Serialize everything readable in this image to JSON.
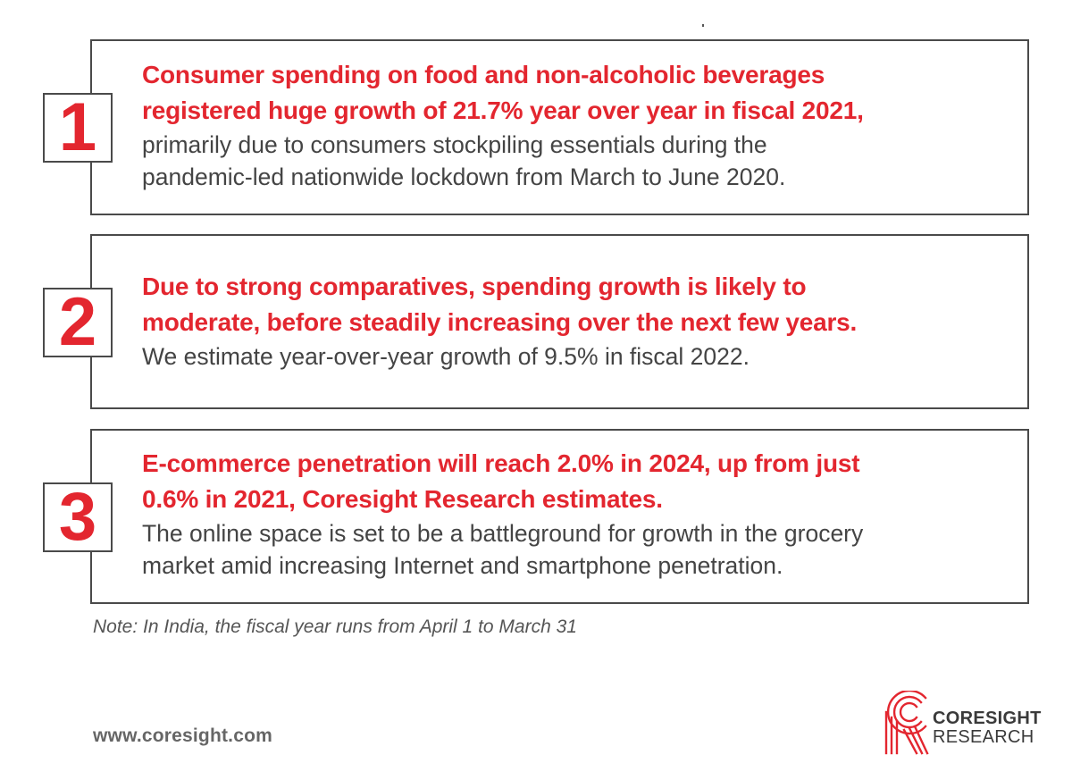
{
  "items": [
    {
      "number": "1",
      "headline_lines": [
        "Consumer spending on food and non-alcoholic beverages",
        "registered huge growth of 21.7% year over year in fiscal 2021,"
      ],
      "body_lines": [
        "primarily due to consumers stockpiling essentials during the",
        "pandemic-led nationwide lockdown from March to June 2020."
      ]
    },
    {
      "number": "2",
      "headline_lines": [
        "Due to strong comparatives, spending growth is likely to",
        "moderate, before steadily increasing over the next few years."
      ],
      "body_lines": [
        "We estimate year-over-year growth of 9.5% in fiscal 2022."
      ]
    },
    {
      "number": "3",
      "headline_lines": [
        "E-commerce penetration will reach 2.0% in 2024, up from just",
        "0.6% in 2021, Coresight Research estimates."
      ],
      "body_lines": [
        "The online space is set to be a battleground for growth in the grocery",
        "market amid increasing Internet and smartphone penetration."
      ]
    }
  ],
  "note": "Note: In India, the fiscal year runs from April 1 to March 31",
  "website": "www.coresight.com",
  "logo": {
    "line1": "CORESIGHT",
    "line2": "RESEARCH",
    "icon": "coresight-r-logo-icon"
  },
  "colors": {
    "accent": "#e3262f",
    "border": "#4a4a4a",
    "body_text": "#444444"
  }
}
